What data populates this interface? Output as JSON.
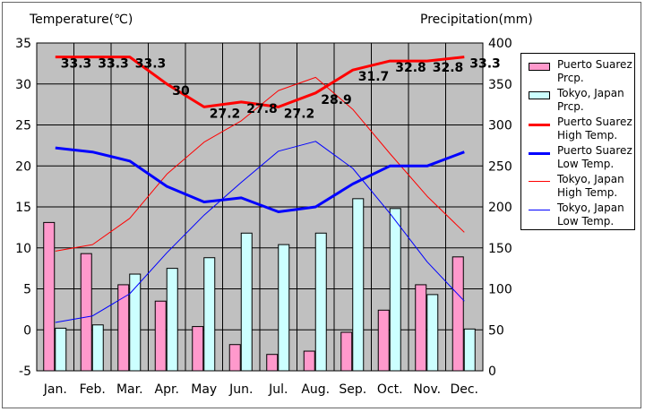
{
  "chart_data": {
    "type": "bar",
    "categories": [
      "Jan.",
      "Feb.",
      "Mar.",
      "Apr.",
      "May",
      "Jun.",
      "Jul.",
      "Aug.",
      "Sep.",
      "Oct.",
      "Nov.",
      "Dec."
    ],
    "left_axis": {
      "title": "Temperature(℃)",
      "ylim": [
        -5,
        35
      ],
      "ticks": [
        -5,
        0,
        5,
        10,
        15,
        20,
        25,
        30,
        35
      ]
    },
    "right_axis": {
      "title": "Precipitation(mm)",
      "ylim": [
        0,
        400
      ],
      "ticks": [
        0,
        50,
        100,
        150,
        200,
        250,
        300,
        350,
        400
      ]
    },
    "grid": true,
    "legend_position": "right",
    "series": [
      {
        "name": "Puerto Suarez\nPrcp.",
        "kind": "bar",
        "axis": "right",
        "color": "#ff99cc",
        "values": [
          181,
          143,
          105,
          85,
          54,
          32,
          20,
          24,
          47,
          74,
          105,
          139
        ]
      },
      {
        "name": "Tokyo, Japan\nPrcp.",
        "kind": "bar",
        "axis": "right",
        "color": "#ccffff",
        "values": [
          52,
          56,
          118,
          125,
          138,
          168,
          154,
          168,
          210,
          198,
          93,
          51
        ]
      },
      {
        "name": "Puerto Suarez\nHigh Temp.",
        "kind": "line",
        "axis": "left",
        "color": "#ff0000",
        "width": 3,
        "values": [
          33.3,
          33.3,
          33.3,
          30.0,
          27.2,
          27.8,
          27.2,
          28.9,
          31.7,
          32.8,
          32.8,
          33.3
        ],
        "labels": [
          "33.3",
          "33.3",
          "33.3",
          "30",
          "27.2",
          "27.8",
          "27.2",
          "28.9",
          "31.7",
          "32.8",
          "32.8",
          "33.3"
        ]
      },
      {
        "name": "Puerto Suarez\nLow Temp.",
        "kind": "line",
        "axis": "left",
        "color": "#0000ff",
        "width": 3,
        "values": [
          22.2,
          21.7,
          20.6,
          17.5,
          15.6,
          16.1,
          14.4,
          15.0,
          17.8,
          20.0,
          20.0,
          21.7
        ]
      },
      {
        "name": "Tokyo, Japan\nHigh Temp.",
        "kind": "line",
        "axis": "left",
        "color": "#ff0000",
        "width": 1,
        "values": [
          9.6,
          10.4,
          13.6,
          19.0,
          22.9,
          25.5,
          29.2,
          30.8,
          26.9,
          21.5,
          16.3,
          11.9
        ]
      },
      {
        "name": "Tokyo, Japan\nLow Temp.",
        "kind": "line",
        "axis": "left",
        "color": "#0000ff",
        "width": 1,
        "values": [
          0.9,
          1.7,
          4.4,
          9.4,
          14.0,
          18.0,
          21.8,
          23.0,
          19.7,
          14.2,
          8.3,
          3.5
        ]
      }
    ]
  }
}
